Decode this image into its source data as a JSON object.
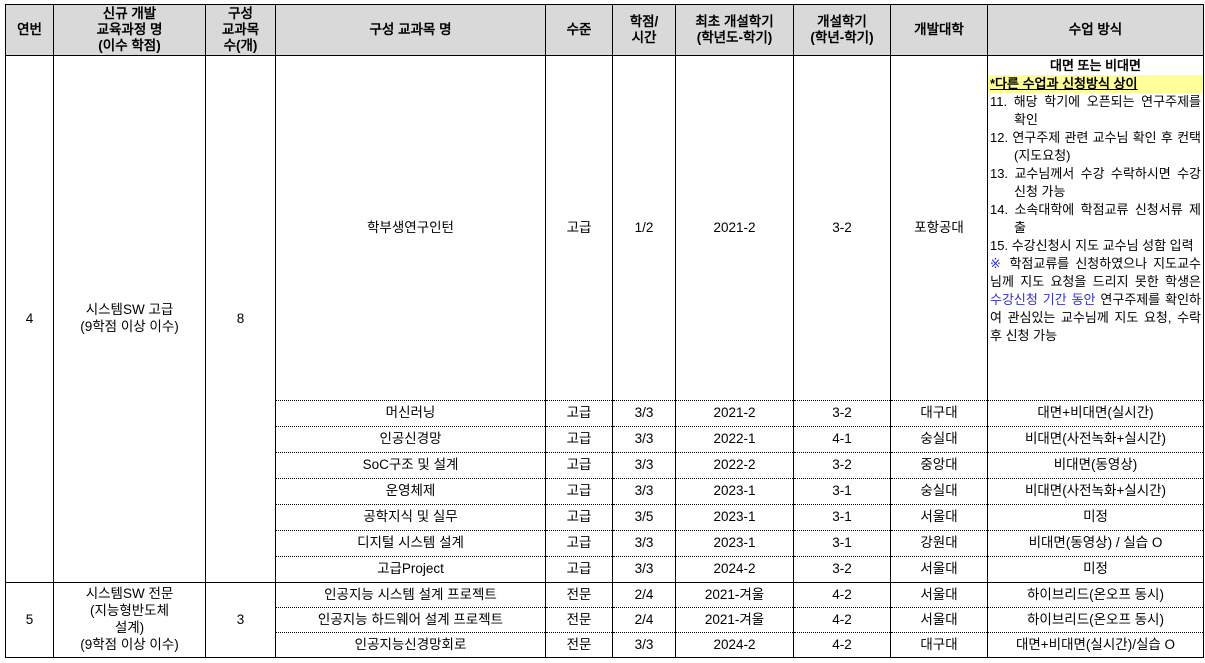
{
  "colors": {
    "border": "#000000",
    "header_bg": "#d9d9d9",
    "highlight_bg": "#ffff99",
    "blue_text": "#3333cc"
  },
  "table": {
    "headers": [
      {
        "id": "no",
        "label": "연번"
      },
      {
        "id": "program",
        "label": "신규 개발\n교육과정 명\n(이수 학점)"
      },
      {
        "id": "course-count",
        "label": "구성\n교과목\n수(개)"
      },
      {
        "id": "course-name",
        "label": "구성 교과목 명"
      },
      {
        "id": "level",
        "label": "수준"
      },
      {
        "id": "credit-hours",
        "label": "학점/\n시간"
      },
      {
        "id": "first-semester",
        "label": "최초 개설학기\n(학년도-학기)"
      },
      {
        "id": "semester",
        "label": "개설학기\n(학년-학기)"
      },
      {
        "id": "university",
        "label": "개발대학"
      },
      {
        "id": "method",
        "label": "수업 방식"
      }
    ],
    "groups": [
      {
        "no": "4",
        "program": "시스템SW 고급\n(9학점 이상 이수)",
        "course_count": "8",
        "courses": [
          {
            "name": "학부생연구인턴",
            "level": "고급",
            "credit_hours": "1/2",
            "first_semester": "2021-2",
            "semester": "3-2",
            "university": "포항공대",
            "method_rich": true
          },
          {
            "name": "머신러닝",
            "level": "고급",
            "credit_hours": "3/3",
            "first_semester": "2021-2",
            "semester": "3-2",
            "university": "대구대",
            "method": "대면+비대면(실시간)"
          },
          {
            "name": "인공신경망",
            "level": "고급",
            "credit_hours": "3/3",
            "first_semester": "2022-1",
            "semester": "4-1",
            "university": "숭실대",
            "method": "비대면(사전녹화+실시간)"
          },
          {
            "name": "SoC구조 및 설계",
            "level": "고급",
            "credit_hours": "3/3",
            "first_semester": "2022-2",
            "semester": "3-2",
            "university": "중앙대",
            "method": "비대면(동영상)"
          },
          {
            "name": "운영체제",
            "level": "고급",
            "credit_hours": "3/3",
            "first_semester": "2023-1",
            "semester": "3-1",
            "university": "숭실대",
            "method": "비대면(사전녹화+실시간)"
          },
          {
            "name": "공학지식 및 실무",
            "level": "고급",
            "credit_hours": "3/5",
            "first_semester": "2023-1",
            "semester": "3-1",
            "university": "서울대",
            "method": "미정"
          },
          {
            "name": "디지털 시스템 설계",
            "level": "고급",
            "credit_hours": "3/3",
            "first_semester": "2023-1",
            "semester": "3-1",
            "university": "강원대",
            "method": "비대면(동영상) / 실습 O"
          },
          {
            "name": "고급Project",
            "level": "고급",
            "credit_hours": "3/3",
            "first_semester": "2024-2",
            "semester": "3-2",
            "university": "서울대",
            "method": "미정"
          }
        ]
      },
      {
        "no": "5",
        "program": "시스템SW 전문\n(지능형반도체\n설계)\n(9학점 이상 이수)",
        "course_count": "3",
        "courses": [
          {
            "name": "인공지능 시스템 설계 프로젝트",
            "level": "전문",
            "credit_hours": "2/4",
            "first_semester": "2021-겨울",
            "semester": "4-2",
            "university": "서울대",
            "method": "하이브리드(온오프 동시)"
          },
          {
            "name": "인공지능 하드웨어 설계 프로젝트",
            "level": "전문",
            "credit_hours": "2/4",
            "first_semester": "2021-겨울",
            "semester": "4-2",
            "university": "서울대",
            "method": "하이브리드(온오프 동시)"
          },
          {
            "name": "인공지능신경망회로",
            "level": "전문",
            "credit_hours": "3/3",
            "first_semester": "2024-2",
            "semester": "4-2",
            "university": "대구대",
            "method": "대면+비대면(실시간)/실습 O"
          }
        ]
      }
    ]
  },
  "rich_method": {
    "title": "대면 또는 비대면",
    "highlight": "*다른 수업과 신청방식 상이",
    "steps": [
      {
        "num": "11.",
        "text": "해당 학기에 오픈되는 연구주제를 확인"
      },
      {
        "num": "12.",
        "text": "연구주제 관련 교수님 확인 후 컨택(지도요청)"
      },
      {
        "num": "13.",
        "text": "교수님께서 수강 수락하시면 수강신청 가능"
      },
      {
        "num": "14.",
        "text": "소속대학에 학점교류 신청서류 제출"
      },
      {
        "num": "15.",
        "text": "수강신청시 지도 교수님 성함 입력"
      }
    ],
    "note_segments": [
      {
        "text": "※ ",
        "blue": true
      },
      {
        "text": "학점교류를 신청하였으나 지도교수님께 지도 요청을 드리지 못한 학생은 ",
        "blue": false
      },
      {
        "text": "수강신청 기간 동안",
        "blue": true
      },
      {
        "text": " 연구주제를 확인하여 관심있는 교수님께 지도 요청, 수락 후 신청 가능",
        "blue": false
      }
    ]
  }
}
